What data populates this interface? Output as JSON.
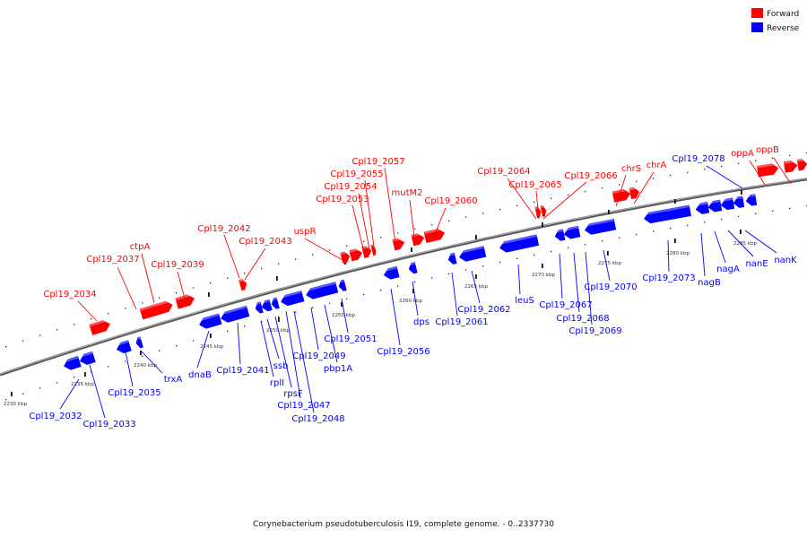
{
  "caption": "Corynebacterium pseudotuberculosis I19, complete genome. - 0..2337730",
  "legend": [
    {
      "label": "Forward",
      "color": "#ff0000"
    },
    {
      "label": "Reverse",
      "color": "#0000ff"
    }
  ],
  "colors": {
    "forward": "#ff0000",
    "reverse": "#0000ff",
    "backbone": "#808080"
  },
  "ticks": [
    "2230 kbp",
    "2235 kbp",
    "2240 kbp",
    "2245 kbp",
    "2250 kbp",
    "2255 kbp",
    "2260 kbp",
    "2265 kbp",
    "2270 kbp",
    "2275 kbp",
    "2280 kbp",
    "2285 kbp"
  ],
  "forward_genes": [
    "Cpl19_2034",
    "Cpl19_2037",
    "ctpA",
    "Cpl19_2039",
    "Cpl19_2042",
    "Cpl19_2043",
    "uspR",
    "Cpl19_2053",
    "Cpl19_2054",
    "Cpl19_2055",
    "Cpl19_2057",
    "mutM2",
    "Cpl19_2060",
    "Cpl19_2064",
    "Cpl19_2065",
    "Cpl19_2066",
    "chrS",
    "chrA",
    "oppA",
    "oppB"
  ],
  "reverse_genes": [
    "Cpl19_2032",
    "Cpl19_2033",
    "Cpl19_2035",
    "trxA",
    "dnaB",
    "Cpl19_2041",
    "rplI",
    "ssb",
    "rpsF",
    "Cpl19_2047",
    "Cpl19_2048",
    "Cpl19_2049",
    "pbp1A",
    "Cpl19_2051",
    "Cpl19_2056",
    "dps",
    "Cpl19_2061",
    "Cpl19_2062",
    "leuS",
    "Cpl19_2067",
    "Cpl19_2068",
    "Cpl19_2069",
    "Cpl19_2070",
    "Cpl19_2073",
    "Cpl19_2078",
    "nagB",
    "nagA",
    "nanE",
    "nanK"
  ]
}
